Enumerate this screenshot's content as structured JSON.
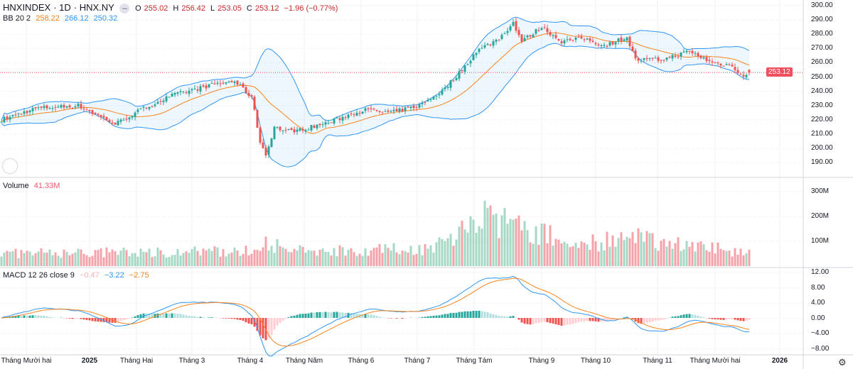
{
  "header": {
    "symbol": "HNXINDEX",
    "interval": "1D",
    "exchange": "HNX.NY",
    "collapse_icon": "minus-icon",
    "o_label": "O",
    "open": "255.02",
    "h_label": "H",
    "high": "256.42",
    "l_label": "L",
    "low": "253.05",
    "c_label": "C",
    "close": "253.12",
    "change": "−1.96 (−0.77%)"
  },
  "bb": {
    "label": "BB 20 2",
    "basis": "258.22",
    "upper": "266.12",
    "lower": "250.32"
  },
  "volume": {
    "label": "Volume",
    "value": "41.33M"
  },
  "macd": {
    "label": "MACD 12 26 close 9",
    "hist": "−0.47",
    "macd": "−3.22",
    "signal": "−2.75"
  },
  "price_axis": [
    "300.00",
    "290.00",
    "280.00",
    "270.00",
    "260.00",
    "250.00",
    "240.00",
    "230.00",
    "220.00",
    "210.00",
    "200.00",
    "190.00"
  ],
  "last_price": "253.12",
  "volume_axis": [
    "300M",
    "200M",
    "100M"
  ],
  "macd_axis": [
    "12.00",
    "8.00",
    "4.00",
    "0.00",
    "−4.00",
    "−8.00"
  ],
  "time_axis": [
    "Tháng Mười hai",
    "2025",
    "Tháng Hai",
    "Tháng 3",
    "Tháng 4",
    "Tháng Năm",
    "Tháng 6",
    "Tháng 7",
    "Tháng Tám",
    "Tháng 9",
    "Tháng 10",
    "Tháng 11",
    "Tháng Mười hai",
    "2026"
  ],
  "colors": {
    "up": "#26a69a",
    "down": "#ef5350",
    "vol_up": "#a5d8c5",
    "vol_down": "#f5a3a8",
    "bb_band": "#2f96f3",
    "bb_basis": "#f7841e",
    "grid": "#eef0f3"
  },
  "chart_data": {
    "type": "candlestick",
    "close_keypoints": [
      [
        0,
        220
      ],
      [
        12,
        228
      ],
      [
        27,
        230
      ],
      [
        40,
        217
      ],
      [
        50,
        228
      ],
      [
        60,
        237
      ],
      [
        75,
        245
      ],
      [
        82,
        247
      ],
      [
        88,
        236
      ],
      [
        91,
        205
      ],
      [
        93,
        195
      ],
      [
        96,
        215
      ],
      [
        100,
        212
      ],
      [
        105,
        213
      ],
      [
        115,
        218
      ],
      [
        127,
        227
      ],
      [
        137,
        225
      ],
      [
        147,
        230
      ],
      [
        155,
        240
      ],
      [
        162,
        255
      ],
      [
        167,
        268
      ],
      [
        175,
        277
      ],
      [
        180,
        288
      ],
      [
        183,
        275
      ],
      [
        190,
        285
      ],
      [
        197,
        275
      ],
      [
        205,
        277
      ],
      [
        212,
        272
      ],
      [
        220,
        278
      ],
      [
        223,
        262
      ],
      [
        232,
        262
      ],
      [
        242,
        268
      ],
      [
        250,
        260
      ],
      [
        257,
        258
      ],
      [
        261,
        250
      ],
      [
        263,
        253
      ]
    ],
    "volume_level_m": [
      [
        0,
        50
      ],
      [
        88,
        60
      ],
      [
        92,
        110
      ],
      [
        100,
        60
      ],
      [
        150,
        70
      ],
      [
        160,
        120
      ],
      [
        166,
        200
      ],
      [
        185,
        150
      ],
      [
        200,
        90
      ],
      [
        225,
        110
      ],
      [
        263,
        55
      ]
    ],
    "ylim": [
      185,
      302
    ],
    "volume_ylim": [
      0,
      330
    ],
    "macd_ylim": [
      -9.5,
      13
    ]
  }
}
